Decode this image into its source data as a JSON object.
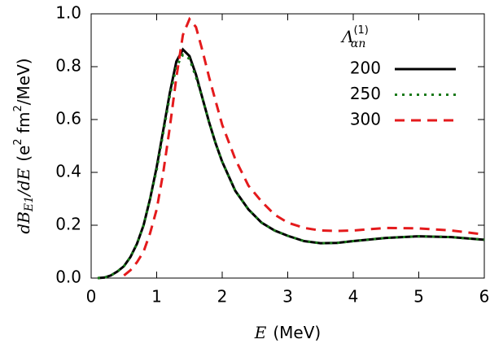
{
  "chart_data": {
    "type": "line",
    "xlabel": [
      "E",
      "(MeV)"
    ],
    "ylabel": [
      "dB",
      "E1",
      "/dE",
      "(e",
      "2",
      " fm",
      "2",
      "/MeV)"
    ],
    "legend_title": [
      "Λ",
      "(1)",
      "αn"
    ],
    "legend": "top-right",
    "x": [
      0.1,
      0.2,
      0.3,
      0.4,
      0.5,
      0.6,
      0.7,
      0.8,
      0.9,
      1.0,
      1.1,
      1.2,
      1.3,
      1.4,
      1.5,
      1.6,
      1.7,
      1.8,
      1.9,
      2.0,
      2.2,
      2.4,
      2.6,
      2.8,
      3.0,
      3.25,
      3.5,
      3.75,
      4.0,
      4.5,
      5.0,
      5.5,
      6.0
    ],
    "series": [
      {
        "name": "200",
        "color": "#000000",
        "dash": "none",
        "values": [
          0,
          0.002,
          0.01,
          0.025,
          0.045,
          0.08,
          0.13,
          0.2,
          0.3,
          0.42,
          0.56,
          0.7,
          0.82,
          0.865,
          0.84,
          0.77,
          0.68,
          0.59,
          0.51,
          0.44,
          0.33,
          0.26,
          0.21,
          0.18,
          0.16,
          0.14,
          0.132,
          0.133,
          0.14,
          0.152,
          0.158,
          0.155,
          0.145
        ]
      },
      {
        "name": "250",
        "color": "#1a7a1a",
        "dash": "3 6",
        "values": [
          0,
          0.002,
          0.01,
          0.025,
          0.045,
          0.08,
          0.13,
          0.2,
          0.3,
          0.41,
          0.55,
          0.69,
          0.8,
          0.845,
          0.83,
          0.76,
          0.68,
          0.59,
          0.51,
          0.44,
          0.33,
          0.26,
          0.21,
          0.18,
          0.16,
          0.14,
          0.132,
          0.133,
          0.14,
          0.152,
          0.158,
          0.155,
          0.145
        ]
      },
      {
        "name": "300",
        "color": "#e41a1c",
        "dash": "12 8",
        "values": [
          null,
          null,
          null,
          null,
          0.01,
          0.03,
          0.06,
          0.1,
          0.17,
          0.26,
          0.4,
          0.57,
          0.76,
          0.92,
          0.98,
          0.95,
          0.86,
          0.76,
          0.67,
          0.58,
          0.45,
          0.35,
          0.29,
          0.24,
          0.21,
          0.19,
          0.18,
          0.178,
          0.18,
          0.19,
          0.188,
          0.18,
          0.165
        ]
      }
    ],
    "xlim": [
      0,
      6
    ],
    "xticks": [
      0,
      1,
      2,
      3,
      4,
      5,
      6
    ],
    "ylim": [
      0,
      1.0
    ],
    "yticks": [
      {
        "value": 0,
        "label": "0.0"
      },
      0.2,
      0.4,
      0.6,
      0.8,
      {
        "value": 1.0,
        "label": "1.0"
      }
    ]
  }
}
